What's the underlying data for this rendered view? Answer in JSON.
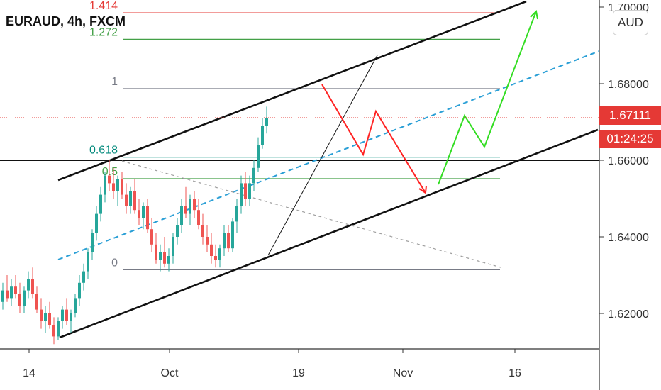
{
  "header": {
    "symbol": "EURAUD, 4h, FXCM"
  },
  "currency": "AUD",
  "badges": {
    "last_price": "1.67111",
    "countdown": "01:24:25"
  },
  "colors": {
    "bull": "#26a69a",
    "bear": "#ef5350",
    "red_arrow": "#ff2222",
    "green_arrow": "#33dd22",
    "trend_dash": "#2a9fd6",
    "fib_1414": "#e53935",
    "fib_1272": "#43a047",
    "fib_0618": "#00897b",
    "fib_05": "#43a047",
    "fib_1": "#787b86",
    "fib_0": "#787b86"
  },
  "chart_data": {
    "type": "candlestick",
    "symbol": "EURAUD",
    "timeframe": "4h",
    "source": "FXCM",
    "y_range": [
      1.6105,
      1.7005
    ],
    "y_ticks": [
      "1.70000",
      "1.68000",
      "1.66000",
      "1.64000",
      "1.62000"
    ],
    "x_ticks": [
      "14",
      "Oct",
      "19",
      "Nov",
      "16"
    ],
    "last_price": 1.67111,
    "horizontal_line": 1.66,
    "fibonacci_levels": [
      {
        "label": "1.414",
        "price": 1.6985
      },
      {
        "label": "1.272",
        "price": 1.6916
      },
      {
        "label": "1",
        "price": 1.6787
      },
      {
        "label": "0.618",
        "price": 1.6608
      },
      {
        "label": "0.5",
        "price": 1.6552
      },
      {
        "label": "0",
        "price": 1.6314
      }
    ],
    "candles": [
      [
        1.623,
        1.628,
        1.621,
        1.626
      ],
      [
        1.626,
        1.63,
        1.623,
        1.624
      ],
      [
        1.624,
        1.629,
        1.622,
        1.627
      ],
      [
        1.627,
        1.63,
        1.624,
        1.625
      ],
      [
        1.625,
        1.628,
        1.62,
        1.622
      ],
      [
        1.622,
        1.627,
        1.62,
        1.626
      ],
      [
        1.626,
        1.631,
        1.624,
        1.629
      ],
      [
        1.629,
        1.632,
        1.624,
        1.625
      ],
      [
        1.625,
        1.627,
        1.62,
        1.621
      ],
      [
        1.621,
        1.624,
        1.616,
        1.618
      ],
      [
        1.618,
        1.622,
        1.615,
        1.62
      ],
      [
        1.62,
        1.623,
        1.616,
        1.617
      ],
      [
        1.617,
        1.619,
        1.612,
        1.614
      ],
      [
        1.614,
        1.619,
        1.613,
        1.618
      ],
      [
        1.618,
        1.622,
        1.616,
        1.621
      ],
      [
        1.621,
        1.624,
        1.617,
        1.618
      ],
      [
        1.618,
        1.621,
        1.615,
        1.62
      ],
      [
        1.62,
        1.625,
        1.619,
        1.624
      ],
      [
        1.624,
        1.63,
        1.622,
        1.628
      ],
      [
        1.628,
        1.633,
        1.626,
        1.631
      ],
      [
        1.631,
        1.637,
        1.629,
        1.636
      ],
      [
        1.636,
        1.642,
        1.634,
        1.641
      ],
      [
        1.641,
        1.648,
        1.639,
        1.646
      ],
      [
        1.646,
        1.653,
        1.644,
        1.651
      ],
      [
        1.651,
        1.657,
        1.649,
        1.656
      ],
      [
        1.656,
        1.66,
        1.652,
        1.654
      ],
      [
        1.654,
        1.658,
        1.65,
        1.652
      ],
      [
        1.652,
        1.656,
        1.648,
        1.655
      ],
      [
        1.655,
        1.657,
        1.65,
        1.651
      ],
      [
        1.651,
        1.654,
        1.646,
        1.648
      ],
      [
        1.648,
        1.653,
        1.646,
        1.652
      ],
      [
        1.652,
        1.655,
        1.646,
        1.647
      ],
      [
        1.647,
        1.65,
        1.643,
        1.645
      ],
      [
        1.645,
        1.649,
        1.642,
        1.648
      ],
      [
        1.648,
        1.65,
        1.641,
        1.642
      ],
      [
        1.642,
        1.645,
        1.636,
        1.638
      ],
      [
        1.638,
        1.641,
        1.633,
        1.634
      ],
      [
        1.634,
        1.638,
        1.631,
        1.636
      ],
      [
        1.636,
        1.64,
        1.632,
        1.633
      ],
      [
        1.633,
        1.637,
        1.631,
        1.635
      ],
      [
        1.635,
        1.641,
        1.633,
        1.64
      ],
      [
        1.64,
        1.645,
        1.638,
        1.643
      ],
      [
        1.643,
        1.65,
        1.641,
        1.648
      ],
      [
        1.648,
        1.653,
        1.645,
        1.646
      ],
      [
        1.646,
        1.651,
        1.643,
        1.65
      ],
      [
        1.65,
        1.652,
        1.645,
        1.647
      ],
      [
        1.647,
        1.65,
        1.642,
        1.643
      ],
      [
        1.643,
        1.646,
        1.638,
        1.64
      ],
      [
        1.64,
        1.643,
        1.636,
        1.638
      ],
      [
        1.638,
        1.641,
        1.633,
        1.635
      ],
      [
        1.635,
        1.638,
        1.632,
        1.634
      ],
      [
        1.634,
        1.638,
        1.632,
        1.637
      ],
      [
        1.637,
        1.643,
        1.635,
        1.641
      ],
      [
        1.641,
        1.643,
        1.636,
        1.637
      ],
      [
        1.637,
        1.645,
        1.636,
        1.644
      ],
      [
        1.644,
        1.65,
        1.641,
        1.648
      ],
      [
        1.648,
        1.656,
        1.646,
        1.654
      ],
      [
        1.654,
        1.657,
        1.648,
        1.65
      ],
      [
        1.65,
        1.656,
        1.648,
        1.654
      ],
      [
        1.654,
        1.66,
        1.652,
        1.658
      ],
      [
        1.658,
        1.666,
        1.657,
        1.664
      ],
      [
        1.664,
        1.671,
        1.663,
        1.669
      ],
      [
        1.669,
        1.674,
        1.667,
        1.6711
      ]
    ],
    "candle_x": [
      4,
      10,
      16,
      22,
      28,
      34,
      40,
      46,
      52,
      58,
      64,
      70,
      76,
      82,
      88,
      94,
      100,
      106,
      112,
      118,
      124,
      130,
      136,
      142,
      148,
      154,
      160,
      166,
      172,
      178,
      184,
      190,
      196,
      202,
      208,
      214,
      220,
      226,
      232,
      238,
      244,
      250,
      256,
      262,
      268,
      274,
      280,
      286,
      292,
      298,
      304,
      310,
      316,
      322,
      328,
      334,
      340,
      346,
      352,
      358,
      364,
      370,
      376
    ]
  }
}
